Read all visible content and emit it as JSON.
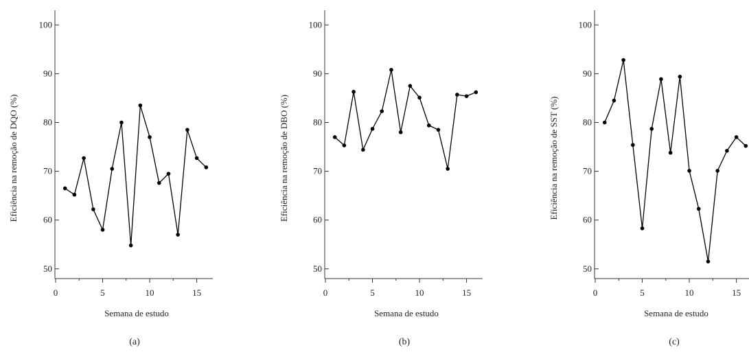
{
  "chart_data": [
    {
      "type": "line",
      "panel_label": "(a)",
      "xlabel": "Semana de estudo",
      "ylabel": "Eficiência na remoção de DQO (%)",
      "xlim": [
        0,
        17
      ],
      "ylim": [
        48,
        103
      ],
      "xticks": [
        0,
        5,
        10,
        15
      ],
      "xtick_labels": [
        "0",
        "5",
        "10",
        "15"
      ],
      "yticks": [
        50,
        60,
        70,
        80,
        90,
        100
      ],
      "ytick_labels": [
        "50",
        "60",
        "70",
        "80",
        "90",
        "100"
      ],
      "grid": false,
      "x": [
        1,
        2,
        3,
        4,
        5,
        6,
        7,
        8,
        9,
        10,
        11,
        12,
        13,
        14,
        15,
        16
      ],
      "series": [
        {
          "values": [
            66.5,
            65.2,
            72.7,
            62.2,
            58.0,
            70.5,
            80.0,
            54.8,
            83.5,
            77.0,
            67.6,
            69.5,
            57.0,
            78.5,
            72.7,
            70.8
          ]
        }
      ]
    },
    {
      "type": "line",
      "panel_label": "(b)",
      "xlabel": "Semana de estudo",
      "ylabel": "Eficiência na remoção de DBO (%)",
      "xlim": [
        0,
        17
      ],
      "ylim": [
        48,
        103
      ],
      "xticks": [
        0,
        5,
        10,
        15
      ],
      "xtick_labels": [
        "0",
        "5",
        "10",
        "15"
      ],
      "yticks": [
        50,
        60,
        70,
        80,
        90,
        100
      ],
      "ytick_labels": [
        "50",
        "60",
        "70",
        "80",
        "90",
        "100"
      ],
      "grid": false,
      "x": [
        1,
        2,
        3,
        4,
        5,
        6,
        7,
        8,
        9,
        10,
        11,
        12,
        13,
        14,
        15,
        16
      ],
      "series": [
        {
          "values": [
            77.0,
            75.3,
            86.3,
            74.4,
            78.7,
            82.3,
            90.8,
            78.0,
            87.5,
            85.1,
            79.4,
            78.5,
            70.5,
            85.7,
            85.4,
            86.2
          ]
        }
      ]
    },
    {
      "type": "line",
      "panel_label": "(c)",
      "xlabel": "Semana de estudo",
      "ylabel": "Eficiência na remoção de SST (%)",
      "xlim": [
        0,
        17
      ],
      "ylim": [
        48,
        103
      ],
      "xticks": [
        0,
        5,
        10,
        15
      ],
      "xtick_labels": [
        "0",
        "5",
        "10",
        "15"
      ],
      "yticks": [
        50,
        60,
        70,
        80,
        90,
        100
      ],
      "ytick_labels": [
        "50",
        "60",
        "70",
        "80",
        "90",
        "100"
      ],
      "grid": false,
      "x": [
        1,
        2,
        3,
        4,
        5,
        6,
        7,
        8,
        9,
        10,
        11,
        12,
        13,
        14,
        15,
        16
      ],
      "series": [
        {
          "values": [
            80.0,
            84.5,
            92.8,
            75.4,
            58.3,
            78.7,
            88.9,
            73.8,
            89.4,
            70.1,
            62.3,
            51.5,
            70.1,
            74.2,
            77.0,
            75.2
          ]
        }
      ]
    }
  ],
  "colors": {
    "line": "#000000",
    "axis": "#333333",
    "text": "#222222"
  }
}
